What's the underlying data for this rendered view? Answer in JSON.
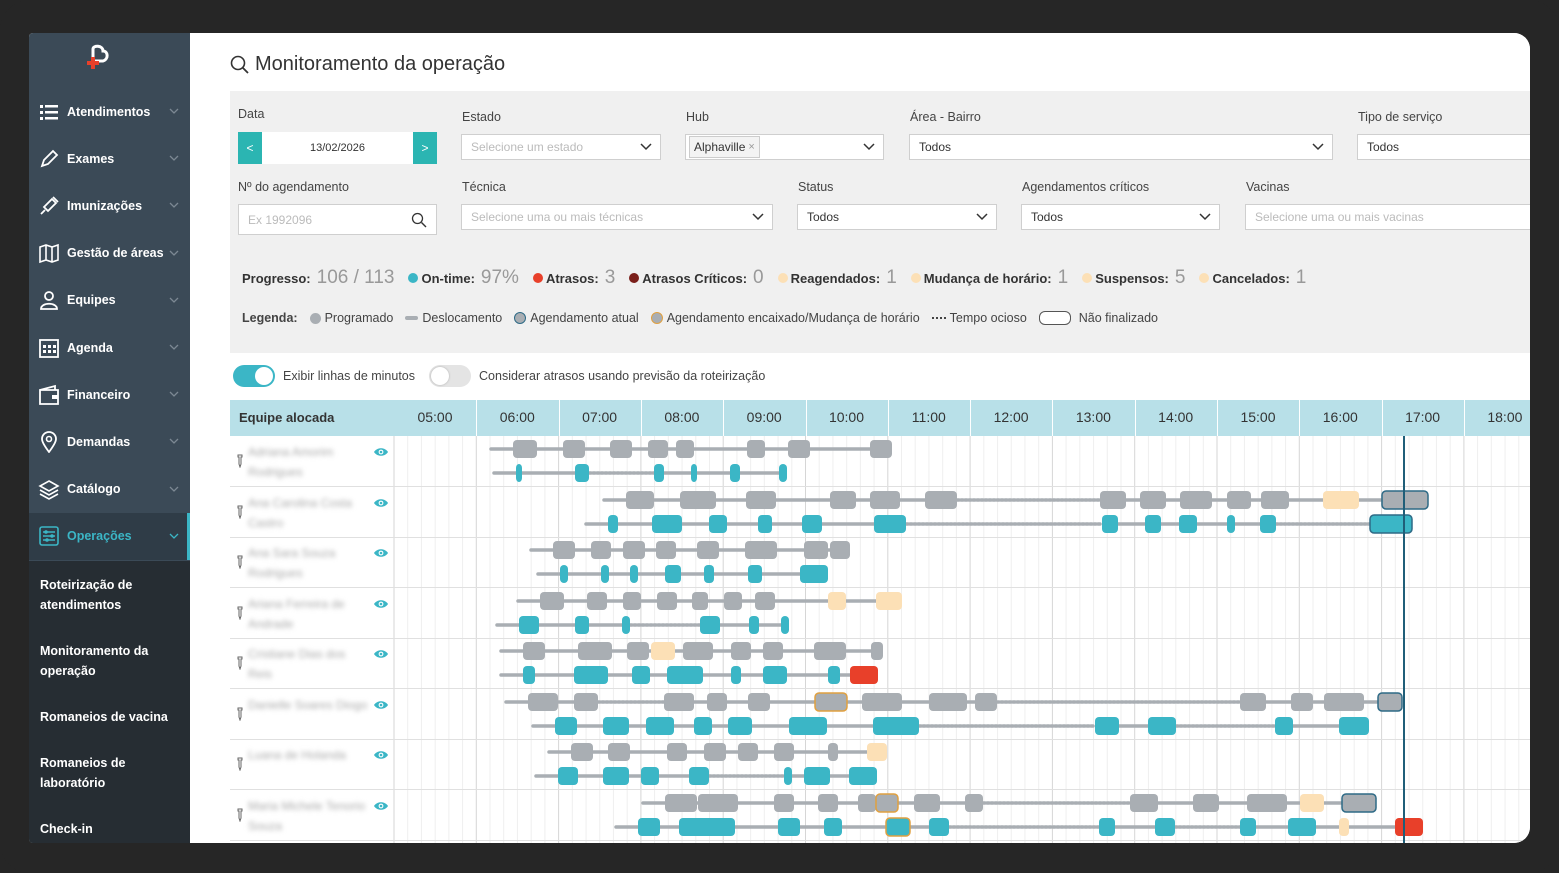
{
  "sidebar": {
    "items": [
      {
        "label": "Atendimentos",
        "icon": "list-icon"
      },
      {
        "label": "Exames",
        "icon": "pen-icon"
      },
      {
        "label": "Imunizações",
        "icon": "syringe-icon"
      },
      {
        "label": "Gestão de áreas",
        "icon": "map-icon"
      },
      {
        "label": "Equipes",
        "icon": "user-icon"
      },
      {
        "label": "Agenda",
        "icon": "calendar-icon"
      },
      {
        "label": "Financeiro",
        "icon": "wallet-icon"
      },
      {
        "label": "Demandas",
        "icon": "location-pin-icon"
      },
      {
        "label": "Catálogo",
        "icon": "layers-icon"
      },
      {
        "label": "Operações",
        "icon": "sliders-icon"
      }
    ],
    "subitems": [
      "Roteirização de atendimentos",
      "Monitoramento da operação",
      "Romaneios de vacina",
      "Romaneios de laboratório",
      "Check-in"
    ]
  },
  "page": {
    "title": "Monitoramento da operação"
  },
  "filters": {
    "data": {
      "label": "Data",
      "value": "13/02/2026",
      "prev": "<",
      "next": ">"
    },
    "estado": {
      "label": "Estado",
      "placeholder": "Selecione um estado"
    },
    "hub": {
      "label": "Hub",
      "tag": "Alphaville",
      "remove": "×"
    },
    "area": {
      "label": "Área - Bairro",
      "value": "Todos"
    },
    "tipo": {
      "label": "Tipo de serviço",
      "value": "Todos"
    },
    "agendamento": {
      "label": "Nº do agendamento",
      "placeholder": "Ex 1992096"
    },
    "tecnica": {
      "label": "Técnica",
      "placeholder": "Selecione uma ou mais técnicas"
    },
    "status": {
      "label": "Status",
      "value": "Todos"
    },
    "criticos": {
      "label": "Agendamentos críticos",
      "value": "Todos"
    },
    "vacinas": {
      "label": "Vacinas",
      "placeholder": "Selecione uma ou mais vacinas"
    }
  },
  "progress": {
    "label": "Progresso:",
    "value": "106 / 113",
    "ontime_label": "On-time:",
    "ontime": "97%",
    "atrasos_label": "Atrasos:",
    "atrasos": "3",
    "criticos_label": "Atrasos Críticos:",
    "criticos": "0",
    "reagendados_label": "Reagendados:",
    "reagendados": "1",
    "mudanca_label": "Mudança de horário:",
    "mudanca": "1",
    "suspensos_label": "Suspensos:",
    "suspensos": "5",
    "cancelados_label": "Cancelados:",
    "cancelados": "1"
  },
  "legend": {
    "title": "Legenda:",
    "programado": "Programado",
    "deslocamento": "Deslocamento",
    "atual": "Agendamento atual",
    "encaixado": "Agendamento encaixado/Mudança de horário",
    "ocioso": "Tempo ocioso",
    "nao_finalizado": "Não finalizado"
  },
  "toggles": {
    "minutos": "Exibir linhas de minutos",
    "minutos_on": true,
    "atrasos": "Considerar atrasos usando previsão da roteirização",
    "atrasos_on": false
  },
  "gantt": {
    "team_header": "Equipe alocada",
    "hours": [
      "05:00",
      "06:00",
      "07:00",
      "08:00",
      "09:00",
      "10:00",
      "11:00",
      "12:00",
      "13:00",
      "14:00",
      "15:00",
      "16:00",
      "17:00",
      "18:00"
    ],
    "teams": [
      "Adriana Amorim Rodrigues",
      "Ana Carolina Costa Castro",
      "Ana Sara Souza Rodrigues",
      "Ariana Ferreira de Andrade",
      "Cristiane Dias dos Reis",
      "Danielle Soares Diogo",
      "Luana de Holanda",
      "Maria Michele Tenorio Souza"
    ]
  },
  "colors": {
    "sidebar": "#3b4a57",
    "accent": "#3bb6c6",
    "programado": "#a9aeb3",
    "atual": "#3bb6c6",
    "encaixado": "#fce0b6",
    "atraso": "#e8402a",
    "critico": "#7a1f1a",
    "now_line": "#1f5e78"
  }
}
